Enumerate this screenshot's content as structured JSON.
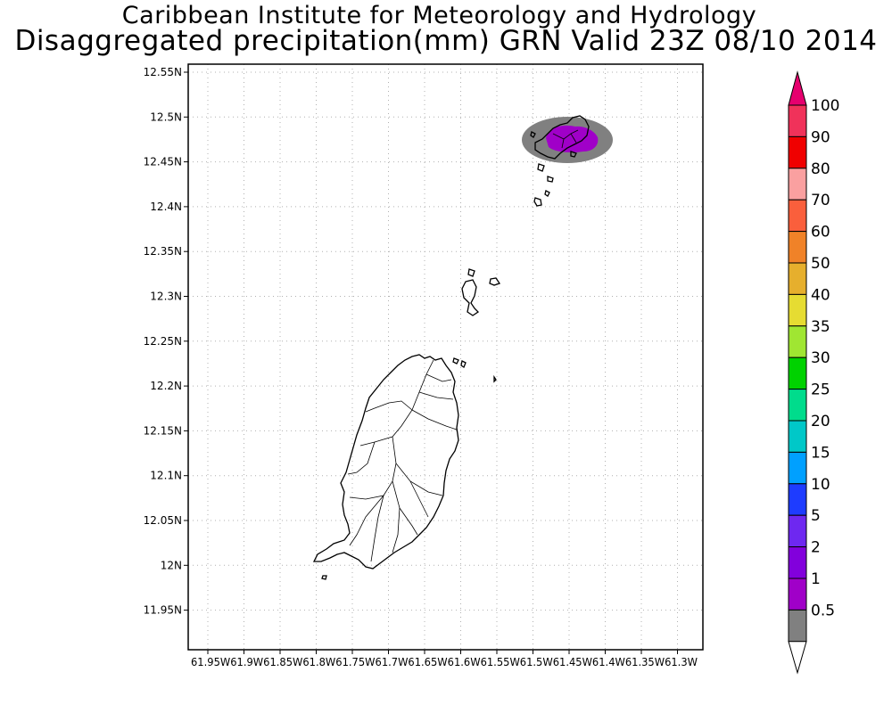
{
  "title_line1": "Caribbean Institute for Meteorology and Hydrology",
  "title_line2": "Disaggregated precipitation(mm) GRN Valid 23Z 08/10 2014",
  "map": {
    "lat_ticks": [
      "12.55N",
      "12.5N",
      "12.45N",
      "12.4N",
      "12.35N",
      "12.3N",
      "12.25N",
      "12.2N",
      "12.15N",
      "12.1N",
      "12.05N",
      "12N",
      "11.95N"
    ],
    "lon_ticks": [
      "61.95W",
      "61.9W",
      "61.85W",
      "61.8W",
      "61.75W",
      "61.7W",
      "61.65W",
      "61.6W",
      "61.55W",
      "61.5W",
      "61.45W",
      "61.4W",
      "61.35W",
      "61.3W"
    ],
    "lon_ticks_text": "61.95W61.9W61.85W61.8W61.75W61.7W61.65W61.6W61.55W61.5W61.45W61.4W61.35W61.3W",
    "grid": "dotted",
    "precip_area": "north-east (Carriacou)"
  },
  "colorbar": {
    "labels": [
      "0.5",
      "1",
      "2",
      "5",
      "10",
      "15",
      "20",
      "25",
      "30",
      "35",
      "40",
      "50",
      "60",
      "70",
      "80",
      "90",
      "100"
    ],
    "colors": [
      "#808080",
      "#a000c8",
      "#8200dc",
      "#6e28f0",
      "#1e3cff",
      "#00a0ff",
      "#00c8c8",
      "#00dc8c",
      "#00d200",
      "#a0e632",
      "#e6dc32",
      "#e6af2d",
      "#f08228",
      "#fa5f3c",
      "#faa0a0",
      "#f00000",
      "#f0325a",
      "#e6006e"
    ]
  }
}
